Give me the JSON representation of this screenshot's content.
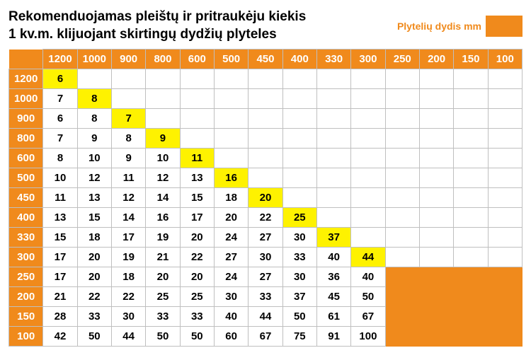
{
  "title_line1": "Rekomenduojamas pleištų ir pritraukėju kiekis",
  "title_line2": "1 kv.m. klijuojant skirtingų dydžių plyteles",
  "legend_label": "Plytelių dydis mm",
  "colors": {
    "orange": "#f08a1c",
    "yellow": "#fef200",
    "grid": "#bfbfbf",
    "header_text": "#ffffff",
    "cell_text": "#000000"
  },
  "columns": [
    "1200",
    "1000",
    "900",
    "800",
    "600",
    "500",
    "450",
    "400",
    "330",
    "300",
    "250",
    "200",
    "150",
    "100"
  ],
  "rows": [
    "1200",
    "1000",
    "900",
    "800",
    "600",
    "500",
    "450",
    "400",
    "330",
    "300",
    "250",
    "200",
    "150",
    "100"
  ],
  "data": [
    [
      "6",
      "",
      "",
      "",
      "",
      "",
      "",
      "",
      "",
      "",
      "",
      "",
      "",
      ""
    ],
    [
      "7",
      "8",
      "",
      "",
      "",
      "",
      "",
      "",
      "",
      "",
      "",
      "",
      "",
      ""
    ],
    [
      "6",
      "8",
      "7",
      "",
      "",
      "",
      "",
      "",
      "",
      "",
      "",
      "",
      "",
      ""
    ],
    [
      "7",
      "9",
      "8",
      "9",
      "",
      "",
      "",
      "",
      "",
      "",
      "",
      "",
      "",
      ""
    ],
    [
      "8",
      "10",
      "9",
      "10",
      "11",
      "",
      "",
      "",
      "",
      "",
      "",
      "",
      "",
      ""
    ],
    [
      "10",
      "12",
      "11",
      "12",
      "13",
      "16",
      "",
      "",
      "",
      "",
      "",
      "",
      "",
      ""
    ],
    [
      "11",
      "13",
      "12",
      "14",
      "15",
      "18",
      "20",
      "",
      "",
      "",
      "",
      "",
      "",
      ""
    ],
    [
      "13",
      "15",
      "14",
      "16",
      "17",
      "20",
      "22",
      "25",
      "",
      "",
      "",
      "",
      "",
      ""
    ],
    [
      "15",
      "18",
      "17",
      "19",
      "20",
      "24",
      "27",
      "30",
      "37",
      "",
      "",
      "",
      "",
      ""
    ],
    [
      "17",
      "20",
      "19",
      "21",
      "22",
      "27",
      "30",
      "33",
      "40",
      "44",
      "",
      "",
      "",
      ""
    ],
    [
      "17",
      "20",
      "18",
      "20",
      "20",
      "24",
      "27",
      "30",
      "36",
      "40",
      "",
      "",
      "",
      ""
    ],
    [
      "21",
      "22",
      "22",
      "25",
      "25",
      "30",
      "33",
      "37",
      "45",
      "50",
      "",
      "",
      "",
      ""
    ],
    [
      "28",
      "33",
      "30",
      "33",
      "33",
      "40",
      "44",
      "50",
      "61",
      "67",
      "",
      "",
      "",
      ""
    ],
    [
      "42",
      "50",
      "44",
      "50",
      "50",
      "60",
      "67",
      "75",
      "91",
      "100",
      "",
      "",
      "",
      ""
    ]
  ],
  "diagonal_cells": [
    {
      "r": 0,
      "c": 0
    },
    {
      "r": 1,
      "c": 1
    },
    {
      "r": 2,
      "c": 2
    },
    {
      "r": 3,
      "c": 3
    },
    {
      "r": 4,
      "c": 4
    },
    {
      "r": 5,
      "c": 5
    },
    {
      "r": 6,
      "c": 6
    },
    {
      "r": 7,
      "c": 7
    },
    {
      "r": 8,
      "c": 8
    },
    {
      "r": 9,
      "c": 9
    }
  ],
  "orange_block": {
    "row_start": 10,
    "col_start": 10,
    "row_span": 4,
    "col_span": 4
  }
}
